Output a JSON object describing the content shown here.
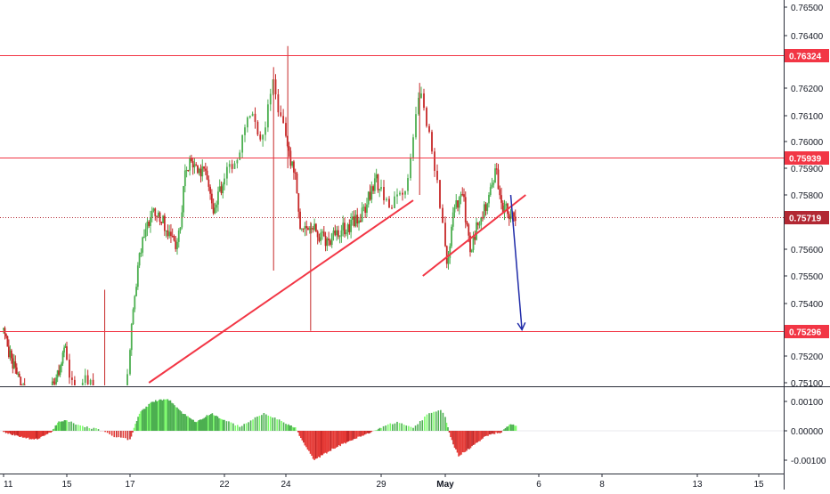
{
  "chart_data": [
    {
      "type": "candlestick",
      "y_axis": {
        "ticks": [
          "0.76500",
          "0.76400",
          "0.76200",
          "0.76100",
          "0.76000",
          "0.75900",
          "0.75800",
          "0.75600",
          "0.75500",
          "0.75400",
          "0.75200",
          "0.75100"
        ],
        "range": [
          0.751,
          0.765
        ]
      },
      "x_axis": {
        "ticks": [
          "11",
          "15",
          "17",
          "22",
          "24",
          "29",
          "May",
          "6",
          "8",
          "13",
          "15"
        ]
      },
      "horizontal_levels": [
        {
          "value": 0.76324,
          "label": "0.76324",
          "color": "#f23645",
          "style": "solid"
        },
        {
          "value": 0.75939,
          "label": "0.75939",
          "color": "#f23645",
          "style": "solid"
        },
        {
          "value": 0.75719,
          "label": "0.75719",
          "color": "#b22833",
          "style": "dotted",
          "note": "current price"
        },
        {
          "value": 0.75296,
          "label": "0.75296",
          "color": "#f23645",
          "style": "solid"
        }
      ],
      "trendlines": [
        {
          "from": [
            18.0,
            0.751
          ],
          "to": [
            30.0,
            0.7578
          ],
          "color": "#f23645"
        },
        {
          "from": [
            30.3,
            0.755
          ],
          "to": [
            35.3,
            0.758
          ],
          "color": "#f23645"
        }
      ],
      "arrow": {
        "from": [
          34.5,
          0.758
        ],
        "to": [
          35.1,
          0.753
        ],
        "color": "#1e2aa8"
      },
      "candles": {
        "day_start": 11,
        "day_end": 34.8,
        "anchors": [
          [
            11.0,
            0.753
          ],
          [
            11.5,
            0.7518
          ],
          [
            12.4,
            0.7505
          ],
          [
            13.5,
            0.7503
          ],
          [
            14.3,
            0.7512
          ],
          [
            14.9,
            0.7522
          ],
          [
            15.3,
            0.7506
          ],
          [
            15.7,
            0.7512
          ],
          [
            16.0,
            0.7502
          ],
          [
            16.8,
            0.75
          ],
          [
            17.2,
            0.7542
          ],
          [
            17.7,
            0.7566
          ],
          [
            18.3,
            0.7575
          ],
          [
            18.8,
            0.7569
          ],
          [
            19.5,
            0.756
          ],
          [
            20.0,
            0.7592
          ],
          [
            21.0,
            0.7588
          ],
          [
            21.4,
            0.7574
          ],
          [
            22.0,
            0.7587
          ],
          [
            22.4,
            0.7592
          ],
          [
            22.8,
            0.7613
          ],
          [
            23.2,
            0.76
          ],
          [
            23.6,
            0.7622
          ],
          [
            24.1,
            0.7595
          ],
          [
            24.5,
            0.7588
          ],
          [
            24.8,
            0.7565
          ],
          [
            25.2,
            0.757
          ],
          [
            26.0,
            0.7563
          ],
          [
            27.0,
            0.7567
          ],
          [
            28.0,
            0.7573
          ],
          [
            28.7,
            0.7586
          ],
          [
            29.3,
            0.7575
          ],
          [
            29.8,
            0.7585
          ],
          [
            30.2,
            0.762
          ],
          [
            30.6,
            0.7598
          ],
          [
            30.9,
            0.757
          ],
          [
            31.1,
            0.7553
          ],
          [
            31.4,
            0.7572
          ],
          [
            31.9,
            0.7583
          ],
          [
            32.3,
            0.756
          ],
          [
            32.8,
            0.757
          ],
          [
            33.3,
            0.7578
          ],
          [
            33.7,
            0.7589
          ],
          [
            34.1,
            0.7575
          ],
          [
            34.8,
            0.7572
          ]
        ]
      }
    },
    {
      "type": "histogram",
      "y_axis": {
        "ticks": [
          "0.00100",
          "0.00000",
          "-0.00100"
        ],
        "range": [
          -0.0011,
          0.0012
        ]
      },
      "anchors": [
        [
          11.0,
          -3e-05
        ],
        [
          12.0,
          -0.0002
        ],
        [
          13.0,
          -0.0003
        ],
        [
          14.0,
          -5e-05
        ],
        [
          14.5,
          0.0003
        ],
        [
          15.0,
          0.00035
        ],
        [
          15.5,
          0.00015
        ],
        [
          16.0,
          5e-05
        ],
        [
          16.5,
          -0.0002
        ],
        [
          17.0,
          -0.0003
        ],
        [
          17.5,
          0.0006
        ],
        [
          18.2,
          0.001
        ],
        [
          19.0,
          0.0011
        ],
        [
          19.8,
          0.0006
        ],
        [
          20.5,
          0.0003
        ],
        [
          21.3,
          0.0006
        ],
        [
          22.0,
          0.00035
        ],
        [
          22.5,
          0.00015
        ],
        [
          23.3,
          0.0006
        ],
        [
          24.0,
          0.00025
        ],
        [
          24.5,
          0.0001
        ],
        [
          25.0,
          -0.0005
        ],
        [
          25.5,
          -0.001
        ],
        [
          26.5,
          -0.0006
        ],
        [
          27.5,
          -0.0003
        ],
        [
          28.5,
          -5e-05
        ],
        [
          29.5,
          0.0003
        ],
        [
          30.0,
          0.0001
        ],
        [
          30.5,
          0.0006
        ],
        [
          30.9,
          0.0007
        ],
        [
          31.3,
          -0.00025
        ],
        [
          31.7,
          -0.00085
        ],
        [
          32.3,
          -0.0006
        ],
        [
          33.0,
          -0.00025
        ],
        [
          33.5,
          -0.0001
        ],
        [
          34.0,
          -5e-05
        ],
        [
          34.4,
          0.0002
        ],
        [
          34.8,
          0.0002
        ]
      ]
    }
  ]
}
